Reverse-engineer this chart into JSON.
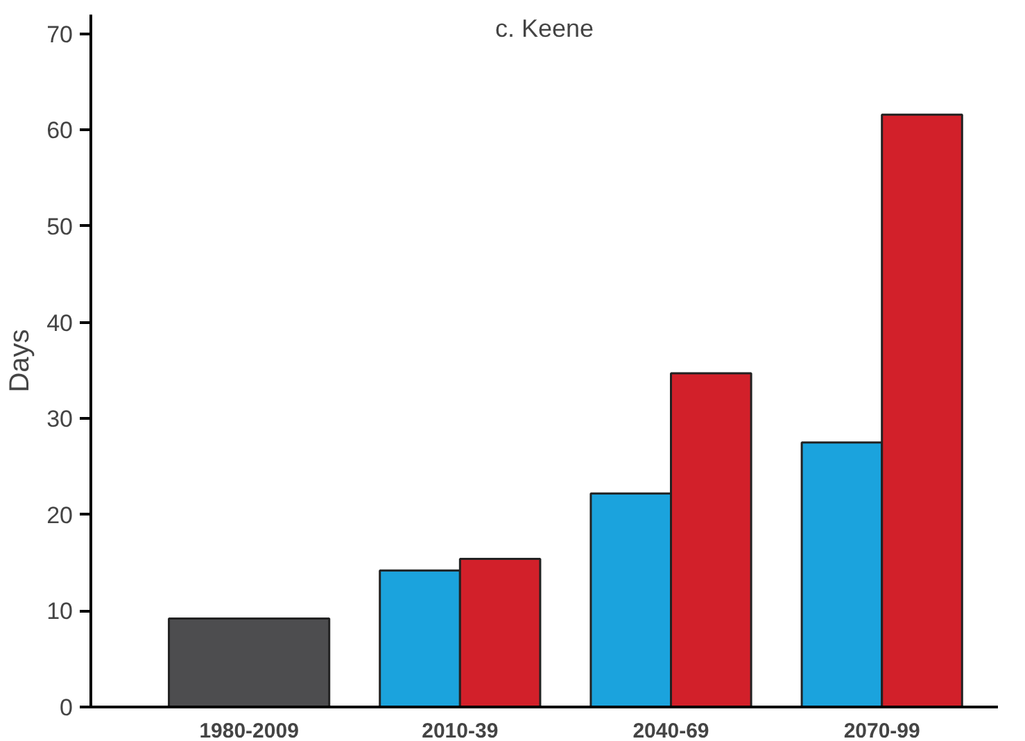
{
  "chart_data": {
    "type": "bar",
    "title": "c. Keene",
    "ylabel": "Days",
    "categories": [
      "1980-2009",
      "2010-39",
      "2040-69",
      "2070-99"
    ],
    "series": [
      {
        "color": "#4d4d4f",
        "values": [
          9.2,
          null,
          null,
          null
        ]
      },
      {
        "color": "#1ba3dd",
        "values": [
          null,
          14.2,
          22.2,
          27.5
        ]
      },
      {
        "color": "#d2202a",
        "values": [
          null,
          15.4,
          34.7,
          61.6
        ]
      }
    ],
    "ylim": [
      0,
      72
    ],
    "yticks": [
      0,
      10,
      20,
      30,
      40,
      50,
      60,
      70
    ],
    "grid": false
  }
}
